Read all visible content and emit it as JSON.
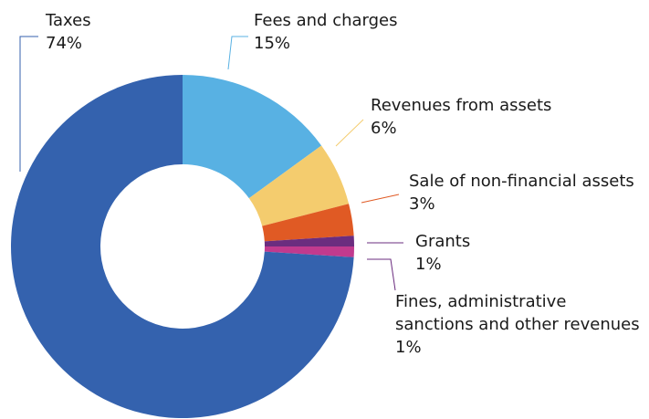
{
  "chart_data": {
    "type": "donut",
    "categories": [
      "Fees and charges",
      "Revenues from assets",
      "Sale of non-financial assets",
      "Grants",
      "Fines, administrative sanctions and other revenues",
      "Taxes"
    ],
    "values": [
      15,
      6,
      3,
      1,
      1,
      74
    ],
    "value_labels": [
      "15%",
      "6%",
      "3%",
      "1%",
      "1%",
      "74%"
    ],
    "colors": [
      "#58b1e3",
      "#f4cc6e",
      "#e05a24",
      "#6b2d7f",
      "#c13a8e",
      "#3462ae"
    ]
  }
}
